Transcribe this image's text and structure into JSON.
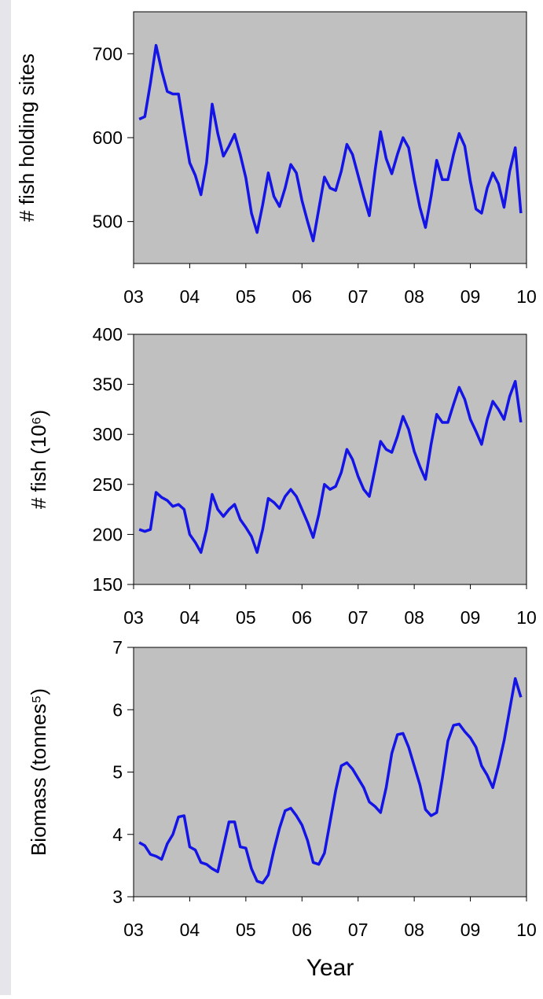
{
  "chart_data": [
    {
      "type": "line",
      "ylabel": "# fish holding sites",
      "background": "#c0c0c0",
      "xlim": [
        3,
        10
      ],
      "xticks": [
        {
          "value": 3,
          "label": "03"
        },
        {
          "value": 4,
          "label": "04"
        },
        {
          "value": 5,
          "label": "05"
        },
        {
          "value": 6,
          "label": "06"
        },
        {
          "value": 7,
          "label": "07"
        },
        {
          "value": 8,
          "label": "08"
        },
        {
          "value": 9,
          "label": "09"
        },
        {
          "value": 10,
          "label": "10"
        }
      ],
      "ylim": [
        450,
        750
      ],
      "yticks": [
        500,
        600,
        700
      ],
      "x": [
        3.1,
        3.2,
        3.3,
        3.4,
        3.5,
        3.6,
        3.7,
        3.8,
        3.9,
        4.0,
        4.1,
        4.2,
        4.3,
        4.4,
        4.5,
        4.6,
        4.7,
        4.8,
        4.9,
        5.0,
        5.1,
        5.2,
        5.3,
        5.4,
        5.5,
        5.6,
        5.7,
        5.8,
        5.9,
        6.0,
        6.1,
        6.2,
        6.3,
        6.4,
        6.5,
        6.6,
        6.7,
        6.8,
        6.9,
        7.0,
        7.1,
        7.2,
        7.3,
        7.4,
        7.5,
        7.6,
        7.7,
        7.8,
        7.9,
        8.0,
        8.1,
        8.2,
        8.3,
        8.4,
        8.5,
        8.6,
        8.7,
        8.8,
        8.9,
        9.0,
        9.1,
        9.2,
        9.3,
        9.4,
        9.5,
        9.6,
        9.7,
        9.8,
        9.9
      ],
      "series": [
        {
          "color": "#1414e6",
          "values": [
            622,
            625,
            665,
            710,
            680,
            655,
            652,
            652,
            610,
            570,
            555,
            532,
            570,
            640,
            605,
            578,
            590,
            604,
            580,
            552,
            510,
            487,
            520,
            558,
            530,
            518,
            540,
            568,
            558,
            525,
            500,
            477,
            515,
            553,
            540,
            537,
            560,
            592,
            580,
            555,
            530,
            507,
            560,
            607,
            575,
            557,
            580,
            600,
            588,
            550,
            517,
            493,
            530,
            573,
            550,
            550,
            580,
            605,
            590,
            548,
            515,
            510,
            540,
            558,
            545,
            517,
            560,
            588,
            510
          ]
        }
      ]
    },
    {
      "type": "line",
      "ylabel": "# fish (10⁶)",
      "background": "#c0c0c0",
      "xlim": [
        3,
        10
      ],
      "xticks": [
        {
          "value": 3,
          "label": "03"
        },
        {
          "value": 4,
          "label": "04"
        },
        {
          "value": 5,
          "label": "05"
        },
        {
          "value": 6,
          "label": "06"
        },
        {
          "value": 7,
          "label": "07"
        },
        {
          "value": 8,
          "label": "08"
        },
        {
          "value": 9,
          "label": "09"
        },
        {
          "value": 10,
          "label": "10"
        }
      ],
      "ylim": [
        150,
        400
      ],
      "yticks": [
        150,
        200,
        250,
        300,
        350,
        400
      ],
      "x": [
        3.1,
        3.2,
        3.3,
        3.4,
        3.5,
        3.6,
        3.7,
        3.8,
        3.9,
        4.0,
        4.1,
        4.2,
        4.3,
        4.4,
        4.5,
        4.6,
        4.7,
        4.8,
        4.9,
        5.0,
        5.1,
        5.2,
        5.3,
        5.4,
        5.5,
        5.6,
        5.7,
        5.8,
        5.9,
        6.0,
        6.1,
        6.2,
        6.3,
        6.4,
        6.5,
        6.6,
        6.7,
        6.8,
        6.9,
        7.0,
        7.1,
        7.2,
        7.3,
        7.4,
        7.5,
        7.6,
        7.7,
        7.8,
        7.9,
        8.0,
        8.1,
        8.2,
        8.3,
        8.4,
        8.5,
        8.6,
        8.7,
        8.8,
        8.9,
        9.0,
        9.1,
        9.2,
        9.3,
        9.4,
        9.5,
        9.6,
        9.7,
        9.8,
        9.9
      ],
      "series": [
        {
          "color": "#1414e6",
          "values": [
            205,
            203,
            205,
            242,
            237,
            234,
            228,
            230,
            225,
            200,
            192,
            182,
            205,
            240,
            225,
            218,
            225,
            230,
            215,
            207,
            198,
            182,
            205,
            236,
            232,
            226,
            238,
            245,
            238,
            225,
            212,
            197,
            220,
            250,
            245,
            248,
            262,
            285,
            275,
            258,
            245,
            238,
            265,
            293,
            285,
            282,
            298,
            318,
            305,
            283,
            268,
            255,
            290,
            320,
            312,
            312,
            330,
            347,
            335,
            315,
            303,
            290,
            315,
            333,
            325,
            315,
            338,
            353,
            312
          ]
        }
      ]
    },
    {
      "type": "line",
      "ylabel": "Biomass (tonnes⁵)",
      "xlabel": "Year",
      "background": "#c0c0c0",
      "xlim": [
        3,
        10
      ],
      "xticks": [
        {
          "value": 3,
          "label": "03"
        },
        {
          "value": 4,
          "label": "04"
        },
        {
          "value": 5,
          "label": "05"
        },
        {
          "value": 6,
          "label": "06"
        },
        {
          "value": 7,
          "label": "07"
        },
        {
          "value": 8,
          "label": "08"
        },
        {
          "value": 9,
          "label": "09"
        },
        {
          "value": 10,
          "label": "10"
        }
      ],
      "ylim": [
        3,
        7
      ],
      "yticks": [
        3,
        4,
        5,
        6,
        7
      ],
      "x": [
        3.1,
        3.2,
        3.3,
        3.4,
        3.5,
        3.6,
        3.7,
        3.8,
        3.9,
        4.0,
        4.1,
        4.2,
        4.3,
        4.4,
        4.5,
        4.6,
        4.7,
        4.8,
        4.9,
        5.0,
        5.1,
        5.2,
        5.3,
        5.4,
        5.5,
        5.6,
        5.7,
        5.8,
        5.9,
        6.0,
        6.1,
        6.2,
        6.3,
        6.4,
        6.5,
        6.6,
        6.7,
        6.8,
        6.9,
        7.0,
        7.1,
        7.2,
        7.3,
        7.4,
        7.5,
        7.6,
        7.7,
        7.8,
        7.9,
        8.0,
        8.1,
        8.2,
        8.3,
        8.4,
        8.5,
        8.6,
        8.7,
        8.8,
        8.9,
        9.0,
        9.1,
        9.2,
        9.3,
        9.4,
        9.5,
        9.6,
        9.7,
        9.8,
        9.9
      ],
      "series": [
        {
          "color": "#1414e6",
          "values": [
            3.87,
            3.82,
            3.68,
            3.65,
            3.6,
            3.85,
            4.0,
            4.28,
            4.3,
            3.8,
            3.75,
            3.55,
            3.52,
            3.45,
            3.4,
            3.8,
            4.2,
            4.2,
            3.8,
            3.78,
            3.45,
            3.25,
            3.22,
            3.35,
            3.75,
            4.1,
            4.38,
            4.42,
            4.3,
            4.15,
            3.9,
            3.55,
            3.52,
            3.7,
            4.2,
            4.7,
            5.1,
            5.15,
            5.05,
            4.9,
            4.75,
            4.52,
            4.45,
            4.35,
            4.75,
            5.3,
            5.6,
            5.62,
            5.4,
            5.1,
            4.8,
            4.4,
            4.3,
            4.35,
            4.9,
            5.5,
            5.75,
            5.77,
            5.65,
            5.55,
            5.4,
            5.1,
            4.95,
            4.75,
            5.1,
            5.5,
            6.0,
            6.5,
            6.2
          ]
        }
      ]
    }
  ]
}
